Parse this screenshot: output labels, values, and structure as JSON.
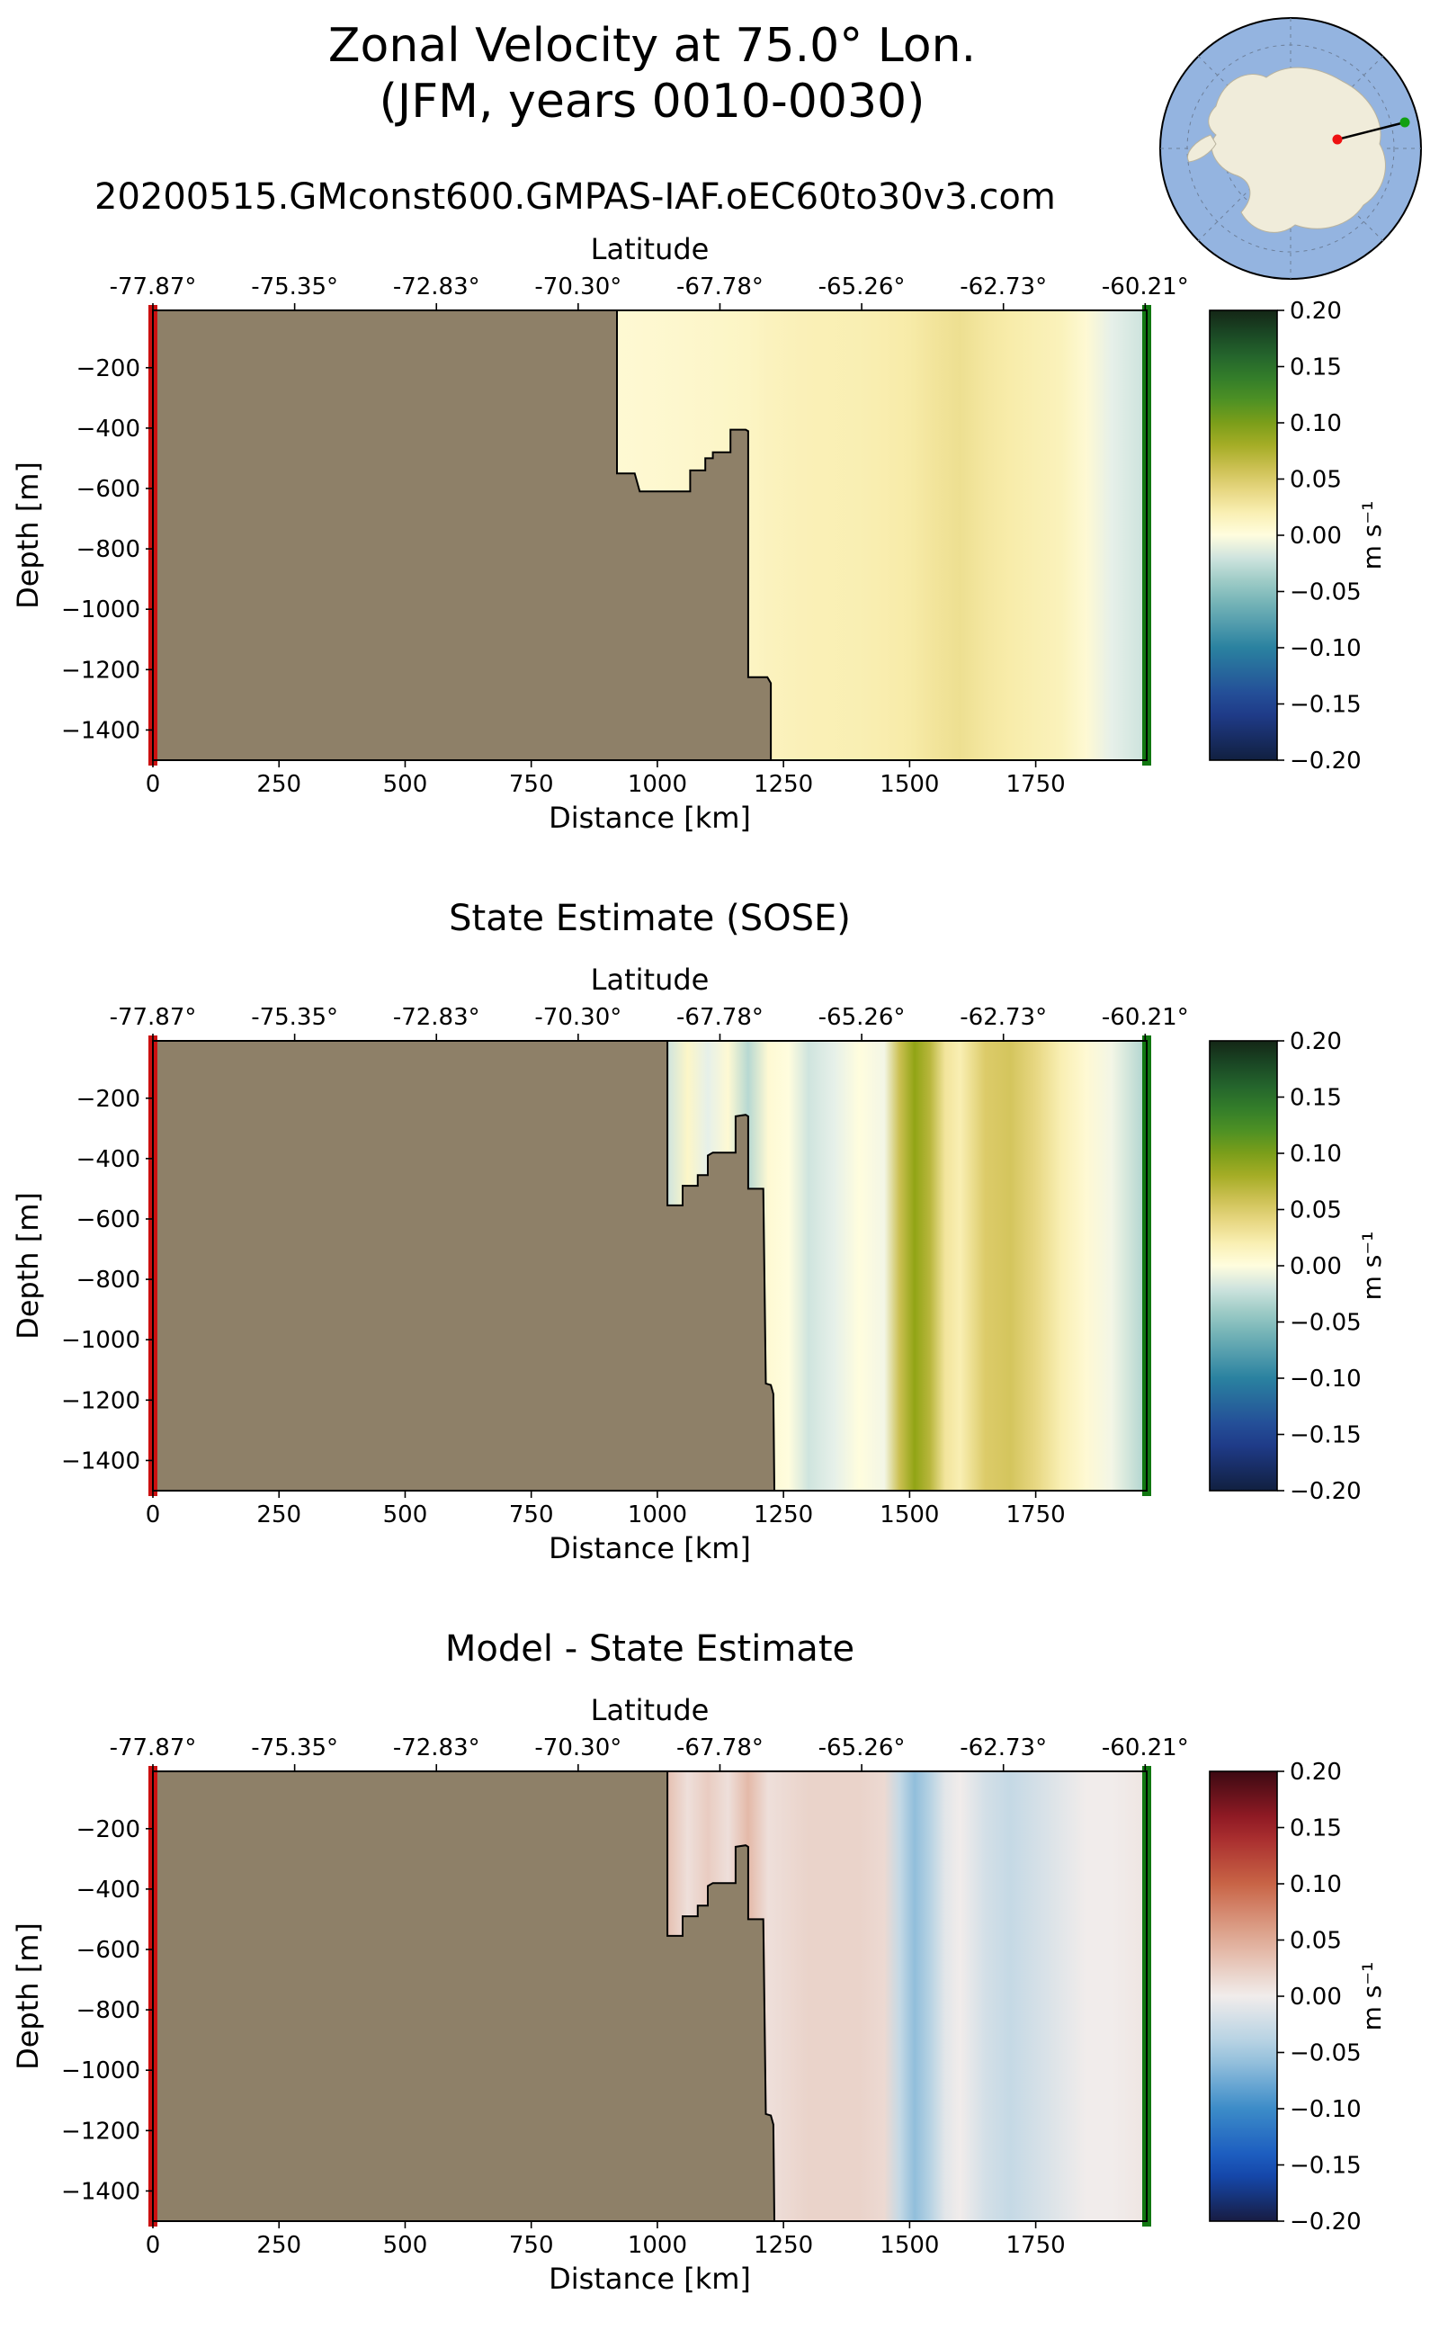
{
  "figure": {
    "title_line1": "Zonal Velocity at 75.0° Lon.",
    "title_line2": "(JFM, years 0010-0030)",
    "run_name": "20200515.GMconst600.GMPAS-IAF.oEC60to30v3.com",
    "colors": {
      "land": "#8e8068",
      "start_marker": "#cc1111",
      "end_marker": "#117711",
      "map_ocean": "#94b4e0",
      "map_land": "#f0ecda"
    }
  },
  "inset_map": {
    "description_icon": "antarctica-map-icon",
    "section_line": "start-to-end"
  },
  "chart_data": [
    {
      "type": "heatmap",
      "title": "",
      "xlabel": "Distance [km]",
      "ylabel": "Depth [m]",
      "top_axis_label": "Latitude",
      "xlim": [
        0,
        1970
      ],
      "ylim": [
        -1500,
        -10
      ],
      "x_ticks": [
        "0",
        "250",
        "500",
        "750",
        "1000",
        "1250",
        "1500",
        "1750"
      ],
      "x_tick_values": [
        0,
        250,
        500,
        750,
        1000,
        1250,
        1500,
        1750
      ],
      "y_ticks": [
        "−200",
        "−400",
        "−600",
        "−800",
        "−1000",
        "−1200",
        "−1400"
      ],
      "y_tick_values": [
        -200,
        -400,
        -600,
        -800,
        -1000,
        -1200,
        -1400
      ],
      "lat_ticks": [
        "-77.87°",
        "-75.35°",
        "-72.83°",
        "-70.30°",
        "-67.78°",
        "-65.26°",
        "-62.73°",
        "-60.21°"
      ],
      "lat_tick_distances": [
        0,
        281,
        562,
        843,
        1124,
        1405,
        1686,
        1967
      ],
      "colorbar": {
        "ticks": [
          "0.20",
          "0.15",
          "0.10",
          "0.05",
          "0.00",
          "−0.05",
          "−0.10",
          "−0.15",
          "−0.20"
        ],
        "range": [
          -0.2,
          0.2
        ],
        "label": "m s⁻¹",
        "cmap": "delta"
      },
      "bathymetry": [
        [
          920,
          -10
        ],
        [
          920,
          -550
        ],
        [
          955,
          -550
        ],
        [
          965,
          -610
        ],
        [
          1065,
          -610
        ],
        [
          1065,
          -540
        ],
        [
          1095,
          -540
        ],
        [
          1095,
          -500
        ],
        [
          1110,
          -500
        ],
        [
          1110,
          -480
        ],
        [
          1145,
          -480
        ],
        [
          1145,
          -405
        ],
        [
          1175,
          -405
        ],
        [
          1180,
          -410
        ],
        [
          1180,
          -1225
        ],
        [
          1218,
          -1225
        ],
        [
          1225,
          -1245
        ],
        [
          1225,
          -1500
        ]
      ],
      "velocity_profile": {
        "x": [
          920,
          1050,
          1180,
          1220,
          1300,
          1400,
          1450,
          1500,
          1550,
          1600,
          1650,
          1700,
          1750,
          1800,
          1850,
          1900,
          1960
        ],
        "u": [
          0.005,
          0.008,
          0.012,
          0.015,
          0.018,
          0.02,
          0.022,
          0.025,
          0.03,
          0.034,
          0.028,
          0.024,
          0.02,
          0.016,
          0.005,
          -0.01,
          -0.02
        ]
      }
    },
    {
      "type": "heatmap",
      "title": "State Estimate (SOSE)",
      "xlabel": "Distance [km]",
      "ylabel": "Depth [m]",
      "top_axis_label": "Latitude",
      "xlim": [
        0,
        1970
      ],
      "ylim": [
        -1500,
        -10
      ],
      "x_ticks": [
        "0",
        "250",
        "500",
        "750",
        "1000",
        "1250",
        "1500",
        "1750"
      ],
      "x_tick_values": [
        0,
        250,
        500,
        750,
        1000,
        1250,
        1500,
        1750
      ],
      "y_ticks": [
        "−200",
        "−400",
        "−600",
        "−800",
        "−1000",
        "−1200",
        "−1400"
      ],
      "y_tick_values": [
        -200,
        -400,
        -600,
        -800,
        -1000,
        -1200,
        -1400
      ],
      "lat_ticks": [
        "-77.87°",
        "-75.35°",
        "-72.83°",
        "-70.30°",
        "-67.78°",
        "-65.26°",
        "-62.73°",
        "-60.21°"
      ],
      "lat_tick_distances": [
        0,
        281,
        562,
        843,
        1124,
        1405,
        1686,
        1967
      ],
      "colorbar": {
        "ticks": [
          "0.20",
          "0.15",
          "0.10",
          "0.05",
          "0.00",
          "−0.05",
          "−0.10",
          "−0.15",
          "−0.20"
        ],
        "range": [
          -0.2,
          0.2
        ],
        "label": "m s⁻¹",
        "cmap": "delta"
      },
      "bathymetry": [
        [
          1020,
          -10
        ],
        [
          1020,
          -555
        ],
        [
          1050,
          -555
        ],
        [
          1050,
          -490
        ],
        [
          1080,
          -490
        ],
        [
          1080,
          -455
        ],
        [
          1100,
          -455
        ],
        [
          1100,
          -390
        ],
        [
          1110,
          -380
        ],
        [
          1155,
          -380
        ],
        [
          1155,
          -260
        ],
        [
          1175,
          -255
        ],
        [
          1180,
          -260
        ],
        [
          1180,
          -500
        ],
        [
          1210,
          -500
        ],
        [
          1215,
          -1145
        ],
        [
          1225,
          -1150
        ],
        [
          1230,
          -1180
        ],
        [
          1232,
          -1500
        ]
      ],
      "velocity_profile": {
        "x": [
          1020,
          1060,
          1100,
          1140,
          1180,
          1220,
          1260,
          1300,
          1350,
          1400,
          1450,
          1480,
          1510,
          1540,
          1570,
          1600,
          1650,
          1700,
          1750,
          1800,
          1850,
          1900,
          1960
        ],
        "u": [
          -0.02,
          0.01,
          -0.01,
          0.005,
          -0.03,
          0.005,
          0.0,
          -0.02,
          -0.01,
          0.0,
          -0.005,
          0.06,
          0.09,
          0.07,
          0.03,
          0.02,
          0.05,
          0.055,
          0.04,
          0.02,
          0.005,
          -0.005,
          -0.03
        ]
      }
    },
    {
      "type": "heatmap",
      "title": "Model - State Estimate",
      "xlabel": "Distance [km]",
      "ylabel": "Depth [m]",
      "top_axis_label": "Latitude",
      "xlim": [
        0,
        1970
      ],
      "ylim": [
        -1500,
        -10
      ],
      "x_ticks": [
        "0",
        "250",
        "500",
        "750",
        "1000",
        "1250",
        "1500",
        "1750"
      ],
      "x_tick_values": [
        0,
        250,
        500,
        750,
        1000,
        1250,
        1500,
        1750
      ],
      "y_ticks": [
        "−200",
        "−400",
        "−600",
        "−800",
        "−1000",
        "−1200",
        "−1400"
      ],
      "y_tick_values": [
        -200,
        -400,
        -600,
        -800,
        -1000,
        -1200,
        -1400
      ],
      "lat_ticks": [
        "-77.87°",
        "-75.35°",
        "-72.83°",
        "-70.30°",
        "-67.78°",
        "-65.26°",
        "-62.73°",
        "-60.21°"
      ],
      "lat_tick_distances": [
        0,
        281,
        562,
        843,
        1124,
        1405,
        1686,
        1967
      ],
      "colorbar": {
        "ticks": [
          "0.20",
          "0.15",
          "0.10",
          "0.05",
          "0.00",
          "−0.05",
          "−0.10",
          "−0.15",
          "−0.20"
        ],
        "range": [
          -0.2,
          0.2
        ],
        "label": "m s⁻¹",
        "cmap": "balance"
      },
      "bathymetry": [
        [
          1020,
          -10
        ],
        [
          1020,
          -555
        ],
        [
          1050,
          -555
        ],
        [
          1050,
          -490
        ],
        [
          1080,
          -490
        ],
        [
          1080,
          -455
        ],
        [
          1100,
          -455
        ],
        [
          1100,
          -390
        ],
        [
          1110,
          -380
        ],
        [
          1155,
          -380
        ],
        [
          1155,
          -260
        ],
        [
          1175,
          -255
        ],
        [
          1180,
          -260
        ],
        [
          1180,
          -500
        ],
        [
          1210,
          -500
        ],
        [
          1215,
          -1145
        ],
        [
          1225,
          -1150
        ],
        [
          1230,
          -1180
        ],
        [
          1232,
          -1500
        ]
      ],
      "velocity_profile": {
        "x": [
          1020,
          1060,
          1100,
          1140,
          1180,
          1220,
          1260,
          1300,
          1350,
          1400,
          1450,
          1480,
          1510,
          1540,
          1570,
          1600,
          1650,
          1700,
          1750,
          1800,
          1850,
          1900,
          1960
        ],
        "u": [
          0.035,
          0.01,
          0.025,
          0.01,
          0.04,
          0.01,
          0.015,
          0.02,
          0.02,
          0.02,
          0.015,
          -0.03,
          -0.06,
          -0.04,
          -0.01,
          0.0,
          -0.02,
          -0.03,
          -0.02,
          -0.01,
          0.0,
          0.0,
          0.005
        ]
      }
    }
  ]
}
